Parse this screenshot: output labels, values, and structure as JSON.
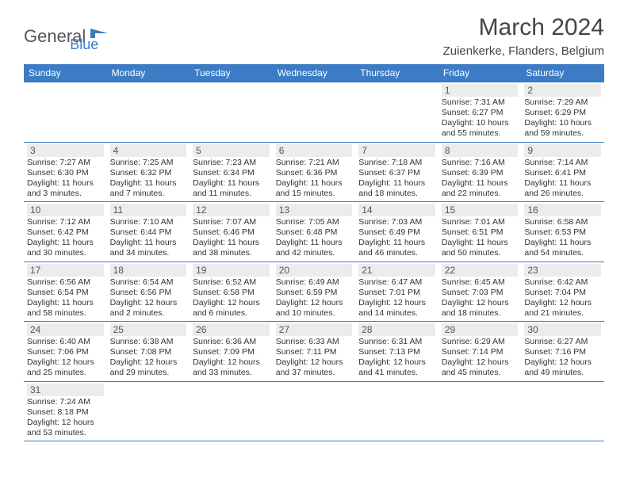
{
  "logo": {
    "general": "General",
    "blue": "Blue"
  },
  "title": "March 2024",
  "location": "Zuienkerke, Flanders, Belgium",
  "colors": {
    "header_bg": "#3b7cc4",
    "header_text": "#ffffff",
    "border": "#3b7cc4",
    "daynum_bg": "#ececec",
    "text": "#333333",
    "logo_gray": "#555555",
    "logo_blue": "#3b7cc4",
    "page_bg": "#ffffff"
  },
  "dayHeaders": [
    "Sunday",
    "Monday",
    "Tuesday",
    "Wednesday",
    "Thursday",
    "Friday",
    "Saturday"
  ],
  "weeks": [
    [
      null,
      null,
      null,
      null,
      null,
      {
        "n": "1",
        "sr": "Sunrise: 7:31 AM",
        "ss": "Sunset: 6:27 PM",
        "d1": "Daylight: 10 hours",
        "d2": "and 55 minutes."
      },
      {
        "n": "2",
        "sr": "Sunrise: 7:29 AM",
        "ss": "Sunset: 6:29 PM",
        "d1": "Daylight: 10 hours",
        "d2": "and 59 minutes."
      }
    ],
    [
      {
        "n": "3",
        "sr": "Sunrise: 7:27 AM",
        "ss": "Sunset: 6:30 PM",
        "d1": "Daylight: 11 hours",
        "d2": "and 3 minutes."
      },
      {
        "n": "4",
        "sr": "Sunrise: 7:25 AM",
        "ss": "Sunset: 6:32 PM",
        "d1": "Daylight: 11 hours",
        "d2": "and 7 minutes."
      },
      {
        "n": "5",
        "sr": "Sunrise: 7:23 AM",
        "ss": "Sunset: 6:34 PM",
        "d1": "Daylight: 11 hours",
        "d2": "and 11 minutes."
      },
      {
        "n": "6",
        "sr": "Sunrise: 7:21 AM",
        "ss": "Sunset: 6:36 PM",
        "d1": "Daylight: 11 hours",
        "d2": "and 15 minutes."
      },
      {
        "n": "7",
        "sr": "Sunrise: 7:18 AM",
        "ss": "Sunset: 6:37 PM",
        "d1": "Daylight: 11 hours",
        "d2": "and 18 minutes."
      },
      {
        "n": "8",
        "sr": "Sunrise: 7:16 AM",
        "ss": "Sunset: 6:39 PM",
        "d1": "Daylight: 11 hours",
        "d2": "and 22 minutes."
      },
      {
        "n": "9",
        "sr": "Sunrise: 7:14 AM",
        "ss": "Sunset: 6:41 PM",
        "d1": "Daylight: 11 hours",
        "d2": "and 26 minutes."
      }
    ],
    [
      {
        "n": "10",
        "sr": "Sunrise: 7:12 AM",
        "ss": "Sunset: 6:42 PM",
        "d1": "Daylight: 11 hours",
        "d2": "and 30 minutes."
      },
      {
        "n": "11",
        "sr": "Sunrise: 7:10 AM",
        "ss": "Sunset: 6:44 PM",
        "d1": "Daylight: 11 hours",
        "d2": "and 34 minutes."
      },
      {
        "n": "12",
        "sr": "Sunrise: 7:07 AM",
        "ss": "Sunset: 6:46 PM",
        "d1": "Daylight: 11 hours",
        "d2": "and 38 minutes."
      },
      {
        "n": "13",
        "sr": "Sunrise: 7:05 AM",
        "ss": "Sunset: 6:48 PM",
        "d1": "Daylight: 11 hours",
        "d2": "and 42 minutes."
      },
      {
        "n": "14",
        "sr": "Sunrise: 7:03 AM",
        "ss": "Sunset: 6:49 PM",
        "d1": "Daylight: 11 hours",
        "d2": "and 46 minutes."
      },
      {
        "n": "15",
        "sr": "Sunrise: 7:01 AM",
        "ss": "Sunset: 6:51 PM",
        "d1": "Daylight: 11 hours",
        "d2": "and 50 minutes."
      },
      {
        "n": "16",
        "sr": "Sunrise: 6:58 AM",
        "ss": "Sunset: 6:53 PM",
        "d1": "Daylight: 11 hours",
        "d2": "and 54 minutes."
      }
    ],
    [
      {
        "n": "17",
        "sr": "Sunrise: 6:56 AM",
        "ss": "Sunset: 6:54 PM",
        "d1": "Daylight: 11 hours",
        "d2": "and 58 minutes."
      },
      {
        "n": "18",
        "sr": "Sunrise: 6:54 AM",
        "ss": "Sunset: 6:56 PM",
        "d1": "Daylight: 12 hours",
        "d2": "and 2 minutes."
      },
      {
        "n": "19",
        "sr": "Sunrise: 6:52 AM",
        "ss": "Sunset: 6:58 PM",
        "d1": "Daylight: 12 hours",
        "d2": "and 6 minutes."
      },
      {
        "n": "20",
        "sr": "Sunrise: 6:49 AM",
        "ss": "Sunset: 6:59 PM",
        "d1": "Daylight: 12 hours",
        "d2": "and 10 minutes."
      },
      {
        "n": "21",
        "sr": "Sunrise: 6:47 AM",
        "ss": "Sunset: 7:01 PM",
        "d1": "Daylight: 12 hours",
        "d2": "and 14 minutes."
      },
      {
        "n": "22",
        "sr": "Sunrise: 6:45 AM",
        "ss": "Sunset: 7:03 PM",
        "d1": "Daylight: 12 hours",
        "d2": "and 18 minutes."
      },
      {
        "n": "23",
        "sr": "Sunrise: 6:42 AM",
        "ss": "Sunset: 7:04 PM",
        "d1": "Daylight: 12 hours",
        "d2": "and 21 minutes."
      }
    ],
    [
      {
        "n": "24",
        "sr": "Sunrise: 6:40 AM",
        "ss": "Sunset: 7:06 PM",
        "d1": "Daylight: 12 hours",
        "d2": "and 25 minutes."
      },
      {
        "n": "25",
        "sr": "Sunrise: 6:38 AM",
        "ss": "Sunset: 7:08 PM",
        "d1": "Daylight: 12 hours",
        "d2": "and 29 minutes."
      },
      {
        "n": "26",
        "sr": "Sunrise: 6:36 AM",
        "ss": "Sunset: 7:09 PM",
        "d1": "Daylight: 12 hours",
        "d2": "and 33 minutes."
      },
      {
        "n": "27",
        "sr": "Sunrise: 6:33 AM",
        "ss": "Sunset: 7:11 PM",
        "d1": "Daylight: 12 hours",
        "d2": "and 37 minutes."
      },
      {
        "n": "28",
        "sr": "Sunrise: 6:31 AM",
        "ss": "Sunset: 7:13 PM",
        "d1": "Daylight: 12 hours",
        "d2": "and 41 minutes."
      },
      {
        "n": "29",
        "sr": "Sunrise: 6:29 AM",
        "ss": "Sunset: 7:14 PM",
        "d1": "Daylight: 12 hours",
        "d2": "and 45 minutes."
      },
      {
        "n": "30",
        "sr": "Sunrise: 6:27 AM",
        "ss": "Sunset: 7:16 PM",
        "d1": "Daylight: 12 hours",
        "d2": "and 49 minutes."
      }
    ],
    [
      {
        "n": "31",
        "sr": "Sunrise: 7:24 AM",
        "ss": "Sunset: 8:18 PM",
        "d1": "Daylight: 12 hours",
        "d2": "and 53 minutes."
      },
      null,
      null,
      null,
      null,
      null,
      null
    ]
  ]
}
